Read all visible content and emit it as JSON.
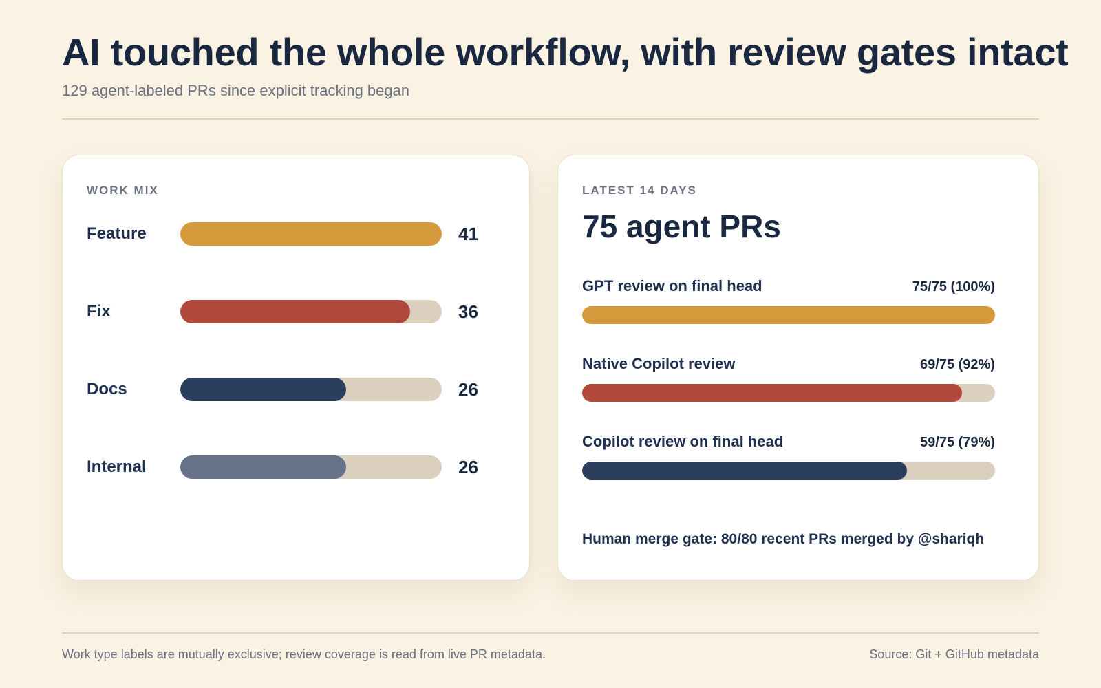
{
  "header": {
    "title": "AI touched the whole workflow, with review gates intact",
    "subtitle": "129 agent-labeled PRs since explicit tracking began"
  },
  "chart_data": [
    {
      "type": "bar",
      "orientation": "horizontal",
      "title": "WORK MIX",
      "categories": [
        "Feature",
        "Fix",
        "Docs",
        "Internal"
      ],
      "values": [
        41,
        36,
        26,
        26
      ],
      "xlim": [
        0,
        41
      ],
      "colors": [
        "#d4993a",
        "#b0493b",
        "#2c3e5e",
        "#66718a"
      ],
      "value_labels": [
        "41",
        "36",
        "26",
        "26"
      ]
    },
    {
      "type": "bar",
      "orientation": "horizontal",
      "kicker": "LATEST 14 DAYS",
      "headline": "75 agent PRs",
      "categories": [
        "GPT review on final head",
        "Native Copilot review",
        "Copilot review on final head"
      ],
      "values": [
        75,
        69,
        59
      ],
      "totals": [
        75,
        75,
        75
      ],
      "value_labels": [
        "75/75 (100%)",
        "69/75 (92%)",
        "59/75 (79%)"
      ],
      "colors": [
        "#d4993a",
        "#b0493b",
        "#2c3e5e"
      ],
      "note": "Human merge gate: 80/80 recent PRs merged by @shariqh"
    }
  ],
  "colors": {
    "background": "#faf2e3",
    "track": "#dbd0bd",
    "text": "#1a2740",
    "muted": "#6b7282"
  },
  "footer": {
    "note": "Work type labels are mutually exclusive; review coverage is read from live PR metadata.",
    "source": "Source: Git + GitHub metadata"
  }
}
